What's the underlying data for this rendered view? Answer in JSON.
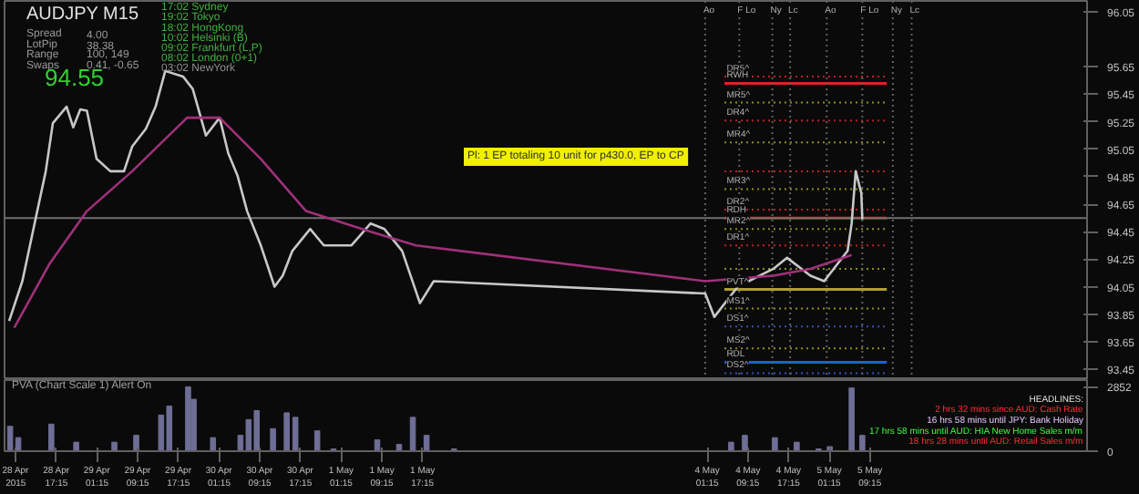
{
  "chart_data": [
    {
      "type": "line",
      "xlim": [
        "2015-04-28T07:03",
        "2015-05-07T03:57"
      ],
      "ylim": [
        93.37,
        96.13
      ],
      "yticks": [
        96.05,
        95.65,
        95.45,
        95.25,
        95.05,
        94.85,
        94.65,
        94.45,
        94.25,
        94.05,
        93.85,
        93.65,
        93.45
      ],
      "tick_labels": "y",
      "grid": false,
      "line_style": "solid",
      "series": [
        {
          "color": "#c8c8c8",
          "x": [
            "2015-04-28T07:57",
            "2015-04-28T10:33",
            "2015-04-28T13:15",
            "2015-04-28T15:09",
            "2015-04-28T16:33",
            "2015-04-28T19:15",
            "2015-04-28T20:33",
            "2015-04-28T21:57",
            "2015-04-28T23:15",
            "2015-04-29T01:09",
            "2015-04-29T03:51",
            "2015-04-29T06:33",
            "2015-04-29T08:09",
            "2015-04-29T10:51",
            "2015-04-29T12:45",
            "2015-04-29T14:39",
            "2015-04-29T18:09",
            "2015-04-29T20:03",
            "2015-04-29T22:39",
            "2015-04-30T01:21",
            "2015-04-30T03:03",
            "2015-04-30T04:51",
            "2015-04-30T06:45",
            "2015-04-30T09:27",
            "2015-04-30T12:09",
            "2015-04-30T13:45",
            "2015-04-30T15:39",
            "2015-04-30T19:09",
            "2015-04-30T21:51",
            "2015-05-01T03:15",
            "2015-05-01T07:03",
            "2015-05-01T09:45",
            "2015-05-01T13:15",
            "2015-05-01T16:45",
            "2015-05-01T19:27",
            "2015-05-04T00:51",
            "2015-05-04T02:39",
            "2015-05-04T07:15",
            "2015-05-04T14:15",
            "2015-05-04T16:57",
            "2015-05-04T21:33",
            "2015-05-05T00:15",
            "2015-05-05T04:51",
            "2015-05-05T05:39",
            "2015-05-05T06:27",
            "2015-05-05T07:33",
            "2015-05-05T07:45"
          ],
          "values": [
            93.8,
            94.09,
            94.56,
            94.89,
            95.24,
            95.36,
            95.21,
            95.34,
            95.33,
            94.98,
            94.89,
            94.89,
            95.07,
            95.2,
            95.36,
            95.62,
            95.58,
            95.49,
            95.15,
            95.28,
            95.02,
            94.86,
            94.6,
            94.35,
            94.05,
            94.13,
            94.31,
            94.47,
            94.35,
            94.35,
            94.51,
            94.47,
            94.31,
            93.93,
            94.09,
            94.0,
            93.83,
            94.05,
            94.18,
            94.26,
            94.13,
            94.09,
            94.31,
            94.51,
            94.89,
            94.73,
            94.54
          ]
        },
        {
          "color": "#a0307a",
          "x": [
            "2015-04-28T08:57",
            "2015-04-28T15:57",
            "2015-04-28T23:15",
            "2015-04-29T08:09",
            "2015-04-29T18:57",
            "2015-04-30T01:21",
            "2015-04-30T09:27",
            "2015-04-30T18:21",
            "2015-05-01T07:03",
            "2015-05-01T15:57",
            "2015-05-04T00:51",
            "2015-05-04T14:15",
            "2015-05-04T21:33",
            "2015-05-05T05:39"
          ],
          "values": [
            93.75,
            94.22,
            94.6,
            94.89,
            95.28,
            95.28,
            94.98,
            94.6,
            94.45,
            94.35,
            94.09,
            94.13,
            94.18,
            94.28
          ]
        }
      ],
      "ref_lines": [
        {
          "axis": "y",
          "value": 94.55,
          "label": null,
          "color": "#707070",
          "line_style": "solid"
        },
        {
          "axis": "y",
          "value": 95.58,
          "label": "DR5^",
          "color": "#c02020",
          "line_style": "dotted"
        },
        {
          "axis": "y",
          "value": 95.53,
          "label": "RWH",
          "color": "#e02020",
          "line_style": "solid"
        },
        {
          "axis": "y",
          "value": 95.39,
          "label": "MR5^",
          "color": "#909020",
          "line_style": "dotted"
        },
        {
          "axis": "y",
          "value": 95.26,
          "label": "DR4^",
          "color": "#c02020",
          "line_style": "dotted"
        },
        {
          "axis": "y",
          "value": 95.1,
          "label": "MR4^",
          "color": "#909020",
          "line_style": "dotted"
        },
        {
          "axis": "y",
          "value": 94.89,
          "label": null,
          "color": "#c02020",
          "line_style": "dotted"
        },
        {
          "axis": "y",
          "value": 94.76,
          "label": "MR3^",
          "color": "#909020",
          "line_style": "dotted"
        },
        {
          "axis": "y",
          "value": 94.61,
          "label": "DR2^",
          "color": "#c02020",
          "line_style": "dotted"
        },
        {
          "axis": "y",
          "value": 94.55,
          "label": "RDH",
          "color": "#e02020",
          "line_style": "solid"
        },
        {
          "axis": "y",
          "value": 94.47,
          "label": "MR2^",
          "color": "#909020",
          "line_style": "dotted"
        },
        {
          "axis": "y",
          "value": 94.35,
          "label": "DR1^",
          "color": "#c02020",
          "line_style": "dotted"
        },
        {
          "axis": "y",
          "value": 94.18,
          "label": null,
          "color": "#909020",
          "line_style": "dotted"
        },
        {
          "axis": "y",
          "value": 94.03,
          "label": "PVT^",
          "color": "#b0a030",
          "line_style": "solid"
        },
        {
          "axis": "y",
          "value": 93.89,
          "label": "MS1^",
          "color": "#909020",
          "line_style": "dotted"
        },
        {
          "axis": "y",
          "value": 93.76,
          "label": "DS1^",
          "color": "#3050c0",
          "line_style": "dotted"
        },
        {
          "axis": "y",
          "value": 93.6,
          "label": "MS2^",
          "color": "#909020",
          "line_style": "dotted"
        },
        {
          "axis": "y",
          "value": 93.5,
          "label": "RDL",
          "color": "#2060d0",
          "line_style": "solid"
        },
        {
          "axis": "y",
          "value": 93.42,
          "label": "DS2^",
          "color": "#3050c0",
          "line_style": "dotted"
        },
        {
          "axis": "x",
          "value": "2015-05-04T00:51",
          "label": "Ao",
          "color": "#606060",
          "line_style": "dotted"
        },
        {
          "axis": "x",
          "value": "2015-05-04T07:33",
          "label": "F Lo",
          "color": "#606060",
          "line_style": "dotted"
        },
        {
          "axis": "x",
          "value": "2015-05-04T14:03",
          "label": "Ny",
          "color": "#606060",
          "line_style": "dotted"
        },
        {
          "axis": "x",
          "value": "2015-05-04T17:33",
          "label": "Lc",
          "color": "#606060",
          "line_style": "dotted"
        },
        {
          "axis": "x",
          "value": "2015-05-05T00:45",
          "label": "Ao",
          "color": "#606060",
          "line_style": "dotted"
        },
        {
          "axis": "x",
          "value": "2015-05-05T07:45",
          "label": "F Lo",
          "color": "#606060",
          "line_style": "dotted"
        },
        {
          "axis": "x",
          "value": "2015-05-05T13:45",
          "label": "Ny",
          "color": "#606060",
          "line_style": "dotted"
        },
        {
          "axis": "x",
          "value": "2015-05-05T17:27",
          "label": "Lc",
          "color": "#606060",
          "line_style": "dotted"
        }
      ],
      "annotations": [
        "AUDJPY  M15",
        "Spread",
        "4.00",
        "LotPip",
        "38.38",
        "Range",
        "100, 149",
        "Swaps",
        "0.41, -0.65",
        "94.55",
        "17:02  Sydney",
        "19:02  Tokyo",
        "18:02  HongKong",
        "10:02  Helsinki  (B)",
        "09:02  Frankfurt  (L,P)",
        "08:02  London  (0+1)",
        "03:02  NewYork",
        "Pl: 1 EP totaling 10 unit for p430.0, EP to CP"
      ]
    },
    {
      "type": "bar",
      "xlim": [
        "2015-04-28T07:03",
        "2015-05-07T03:57"
      ],
      "ylim": [
        0,
        3150
      ],
      "yticks": [
        2852,
        0
      ],
      "grid": false,
      "color": "#6e6e96",
      "x": [
        "2015-04-28T08:09",
        "2015-04-28T09:45",
        "2015-04-28T16:15",
        "2015-04-28T21:09",
        "2015-04-29T04:39",
        "2015-04-29T08:57",
        "2015-04-29T13:51",
        "2015-04-29T15:27",
        "2015-04-29T19:09",
        "2015-04-29T20:15",
        "2015-04-30T00:03",
        "2015-04-30T05:27",
        "2015-04-30T07:03",
        "2015-04-30T08:39",
        "2015-04-30T11:51",
        "2015-04-30T14:33",
        "2015-04-30T16:15",
        "2015-04-30T20:33",
        "2015-04-30T23:45",
        "2015-05-01T08:21",
        "2015-05-01T12:39",
        "2015-05-01T15:21",
        "2015-05-01T18:03",
        "2015-05-01T23:27",
        "2015-05-04T05:57",
        "2015-05-04T08:39",
        "2015-05-04T14:33",
        "2015-05-04T18:51",
        "2015-05-04T23:09",
        "2015-05-05T01:21",
        "2015-05-05T05:39",
        "2015-05-05T07:45"
      ],
      "values": [
        1100,
        600,
        1200,
        400,
        400,
        700,
        1600,
        2000,
        2852,
        2300,
        600,
        700,
        1400,
        1800,
        1000,
        1700,
        1500,
        900,
        100,
        500,
        300,
        1500,
        700,
        100,
        400,
        700,
        600,
        400,
        100,
        200,
        2800,
        700
      ],
      "xticks": [
        {
          "value": "2015-04-28T09:15",
          "label": "28 Apr 2015"
        },
        {
          "value": "2015-04-28T17:15",
          "label": "28 Apr 17:15"
        },
        {
          "value": "2015-04-29T01:15",
          "label": "29 Apr 01:15"
        },
        {
          "value": "2015-04-29T09:15",
          "label": "29 Apr 09:15"
        },
        {
          "value": "2015-04-29T17:15",
          "label": "29 Apr 17:15"
        },
        {
          "value": "2015-04-30T01:15",
          "label": "30 Apr 01:15"
        },
        {
          "value": "2015-04-30T09:15",
          "label": "30 Apr 09:15"
        },
        {
          "value": "2015-04-30T17:15",
          "label": "30 Apr 17:15"
        },
        {
          "value": "2015-05-01T01:15",
          "label": "1 May 01:15"
        },
        {
          "value": "2015-05-01T09:15",
          "label": "1 May 09:15"
        },
        {
          "value": "2015-05-01T17:15",
          "label": "1 May 17:15"
        },
        {
          "value": "2015-05-04T01:15",
          "label": "4 May 01:15"
        },
        {
          "value": "2015-05-04T09:15",
          "label": "4 May 09:15"
        },
        {
          "value": "2015-05-04T17:15",
          "label": "4 May 17:15"
        },
        {
          "value": "2015-05-05T01:15",
          "label": "5 May 01:15"
        },
        {
          "value": "2015-05-05T09:15",
          "label": "5 May 09:15"
        }
      ],
      "annotations": [
        "PVA (Chart Scale 1)    Alert On",
        "HEADLINES:",
        "2 hrs 32 mins since AUD: Cash Rate",
        "16 hrs 58 mins until JPY: Bank Holiday",
        "17 hrs 58 mins until AUD: HIA New Home Sales m/m",
        "18 hrs 28 mins until AUD: Retail Sales m/m"
      ]
    }
  ]
}
